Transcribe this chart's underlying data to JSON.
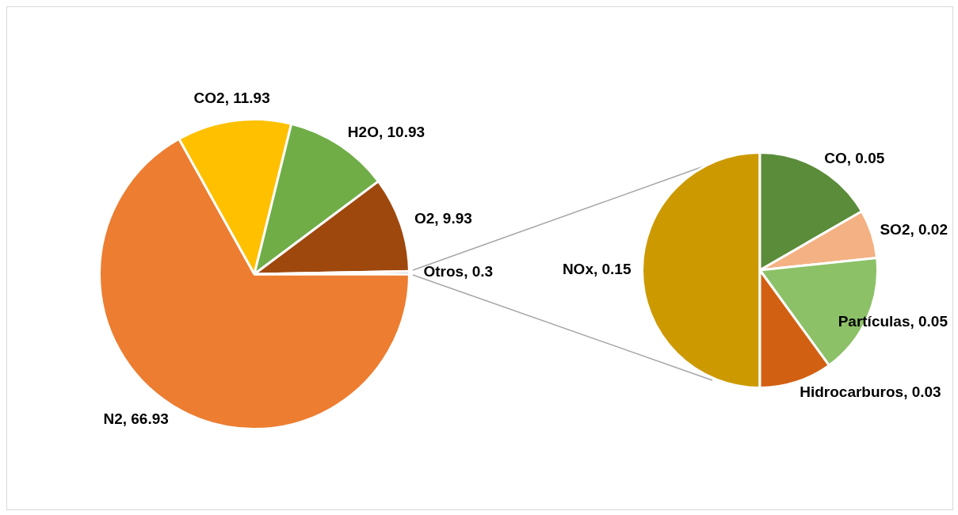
{
  "chart_data": [
    {
      "type": "pie",
      "categories": [
        "N2",
        "CO2",
        "H2O",
        "O2",
        "Otros"
      ],
      "values": [
        66.93,
        11.93,
        10.93,
        9.93,
        0.3
      ],
      "value_labels": [
        ", 66.93",
        ", 11.93",
        ", 10.93",
        ", 9.93",
        ", 0.3"
      ],
      "colors": [
        "#ed7d31",
        "#ffc000",
        "#70ad47",
        "#9e480e",
        "#a5a5a5"
      ]
    },
    {
      "type": "pie",
      "categories": [
        "NOx",
        "CO",
        "SO2",
        "Partículas",
        "Hidrocarburos"
      ],
      "values": [
        0.15,
        0.05,
        0.02,
        0.05,
        0.03
      ],
      "value_labels": [
        ", 0.15",
        ", 0.05",
        ", 0.02",
        ", 0.05",
        ", 0.03"
      ],
      "colors": [
        "#cc9a00",
        "#5b8c3a",
        "#f4b183",
        "#8cc167",
        "#d26012"
      ]
    }
  ]
}
